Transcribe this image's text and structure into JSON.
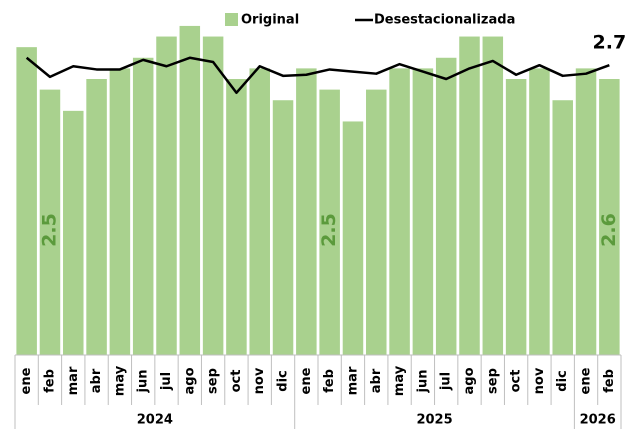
{
  "chart_data": {
    "type": "bar_line",
    "categories": [
      "ene",
      "feb",
      "mar",
      "abr",
      "may",
      "jun",
      "jul",
      "ago",
      "sep",
      "oct",
      "nov",
      "dic",
      "ene",
      "feb",
      "mar",
      "abr",
      "may",
      "jun",
      "jul",
      "ago",
      "sep",
      "oct",
      "nov",
      "dic",
      "ene",
      "feb"
    ],
    "groups": [
      {
        "label": "2024",
        "size": 12
      },
      {
        "label": "2025",
        "size": 12
      },
      {
        "label": "2026",
        "size": 2
      }
    ],
    "series": [
      {
        "name": "Original",
        "kind": "bar",
        "color": "#a9d18e",
        "values": [
          2.9,
          2.5,
          2.3,
          2.6,
          2.7,
          2.8,
          3.0,
          3.1,
          3.0,
          2.6,
          2.7,
          2.4,
          2.7,
          2.5,
          2.2,
          2.5,
          2.7,
          2.7,
          2.8,
          3.0,
          3.0,
          2.6,
          2.7,
          2.4,
          2.7,
          2.6
        ],
        "value_labels": [
          null,
          "2.5",
          null,
          null,
          null,
          null,
          null,
          null,
          null,
          null,
          null,
          null,
          null,
          "2.5",
          null,
          null,
          null,
          null,
          null,
          null,
          null,
          null,
          null,
          null,
          null,
          "2.6"
        ],
        "label_color": "#5b9a3c"
      },
      {
        "name": "Desestacionalizada",
        "kind": "line",
        "color": "#000000",
        "values": [
          2.8,
          2.62,
          2.72,
          2.69,
          2.69,
          2.78,
          2.72,
          2.8,
          2.76,
          2.47,
          2.72,
          2.63,
          2.64,
          2.69,
          2.67,
          2.65,
          2.74,
          2.67,
          2.6,
          2.7,
          2.77,
          2.64,
          2.73,
          2.63,
          2.65,
          2.73
        ],
        "value_labels": [
          null,
          null,
          null,
          null,
          null,
          null,
          null,
          null,
          null,
          null,
          null,
          null,
          null,
          null,
          null,
          null,
          null,
          null,
          null,
          null,
          null,
          null,
          null,
          null,
          null,
          "2.7"
        ]
      }
    ],
    "ylim": [
      0,
      3.25
    ]
  }
}
